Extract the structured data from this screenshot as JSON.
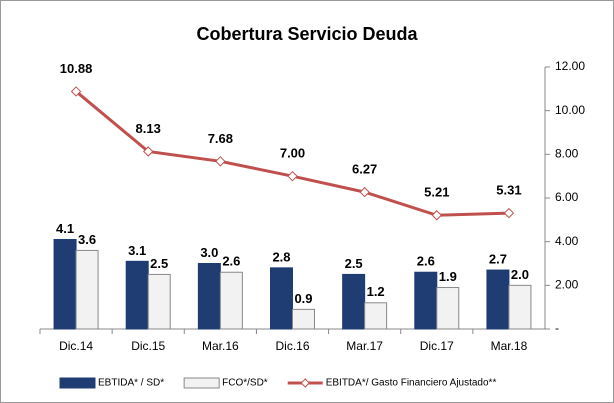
{
  "chart_data": {
    "type": "bar-line",
    "title": "Cobertura Servicio Deuda",
    "categories": [
      "Dic.14",
      "Dic.15",
      "Mar.16",
      "Dic.16",
      "Mar.17",
      "Dic.17",
      "Mar.18"
    ],
    "series": [
      {
        "name": "EBTIDA* / SD*",
        "type": "bar",
        "color": "#1f3c73",
        "axis": "y2",
        "values": [
          4.1,
          3.1,
          3.0,
          2.8,
          2.5,
          2.6,
          2.7
        ],
        "value_labels": [
          "4.1",
          "3.1",
          "3.0",
          "2.8",
          "2.5",
          "2.6",
          "2.7"
        ]
      },
      {
        "name": "FCO*/SD*",
        "type": "bar",
        "color": "#f2f2f2",
        "axis": "y2",
        "values": [
          3.6,
          2.5,
          2.6,
          0.9,
          1.2,
          1.9,
          2.0
        ],
        "value_labels": [
          "3.6",
          "2.5",
          "2.6",
          "0.9",
          "1.2",
          "1.9",
          "2.0"
        ]
      },
      {
        "name": "EBITDA*/ Gasto Financiero Ajustado**",
        "type": "line",
        "color": "#c0504d",
        "axis": "y2",
        "values": [
          10.88,
          8.13,
          7.68,
          7.0,
          6.27,
          5.21,
          5.31
        ],
        "value_labels": [
          "10.88",
          "8.13",
          "7.68",
          "7.00",
          "6.27",
          "5.21",
          "5.31"
        ]
      }
    ],
    "y2lim": [
      0,
      12
    ],
    "y2ticks": [
      {
        "value": 0,
        "label": "-"
      },
      {
        "value": 2,
        "label": "2.00"
      },
      {
        "value": 4,
        "label": "4.00"
      },
      {
        "value": 6,
        "label": "6.00"
      },
      {
        "value": 8,
        "label": "8.00"
      },
      {
        "value": 10,
        "label": "10.00"
      },
      {
        "value": 12,
        "label": "12.00"
      }
    ],
    "legend": "bottom"
  }
}
